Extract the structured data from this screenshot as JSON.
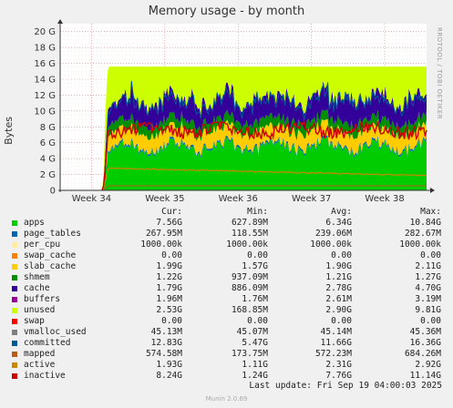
{
  "chart_data": {
    "type": "area",
    "title": "Memory usage - by month",
    "ylabel": "Bytes",
    "side_label": "RRDTOOL / TOBI OETIKER",
    "ylim": [
      0,
      21
    ],
    "yticks": [
      "0",
      "2 G",
      "4 G",
      "6 G",
      "8 G",
      "10 G",
      "12 G",
      "14 G",
      "16 G",
      "18 G",
      "20 G"
    ],
    "x_range": [
      0,
      35
    ],
    "x_ticks": [
      {
        "label": "Week 34",
        "x": 3
      },
      {
        "label": "Week 35",
        "x": 10
      },
      {
        "label": "Week 36",
        "x": 17
      },
      {
        "label": "Week 37",
        "x": 24
      },
      {
        "label": "Week 38",
        "x": 31
      }
    ],
    "column_headers": [
      "Cur:",
      "Min:",
      "Avg:",
      "Max:"
    ],
    "series": [
      {
        "name": "apps",
        "color": "#00cc00",
        "cur": "7.56G",
        "min": "627.89M",
        "avg": "6.34G",
        "max": "10.84G"
      },
      {
        "name": "page_tables",
        "color": "#0066b3",
        "cur": "267.95M",
        "min": "118.55M",
        "avg": "239.06M",
        "max": "282.67M"
      },
      {
        "name": "per_cpu",
        "color": "#ffeda0",
        "cur": "1000.00k",
        "min": "1000.00k",
        "avg": "1000.00k",
        "max": "1000.00k"
      },
      {
        "name": "swap_cache",
        "color": "#ff8000",
        "cur": "0.00",
        "min": "0.00",
        "avg": "0.00",
        "max": "0.00"
      },
      {
        "name": "slab_cache",
        "color": "#ffcc00",
        "cur": "1.99G",
        "min": "1.57G",
        "avg": "1.90G",
        "max": "2.11G"
      },
      {
        "name": "shmem",
        "color": "#008f00",
        "cur": "1.22G",
        "min": "937.09M",
        "avg": "1.21G",
        "max": "1.27G"
      },
      {
        "name": "cache",
        "color": "#330099",
        "cur": "1.79G",
        "min": "886.09M",
        "avg": "2.78G",
        "max": "4.70G"
      },
      {
        "name": "buffers",
        "color": "#990099",
        "cur": "1.96M",
        "min": "1.76M",
        "avg": "2.61M",
        "max": "3.19M"
      },
      {
        "name": "unused",
        "color": "#ccff00",
        "cur": "2.53G",
        "min": "168.85M",
        "avg": "2.90G",
        "max": "9.81G"
      },
      {
        "name": "swap",
        "color": "#ff0000",
        "cur": "0.00",
        "min": "0.00",
        "avg": "0.00",
        "max": "0.00"
      },
      {
        "name": "vmalloc_used",
        "color": "#808080",
        "cur": "45.13M",
        "min": "45.07M",
        "avg": "45.14M",
        "max": "45.36M"
      },
      {
        "name": "committed",
        "color": "#005a96",
        "cur": "12.83G",
        "min": "5.47G",
        "avg": "11.66G",
        "max": "16.36G"
      },
      {
        "name": "mapped",
        "color": "#b85c1a",
        "cur": "574.58M",
        "min": "173.75M",
        "avg": "572.23M",
        "max": "684.26M"
      },
      {
        "name": "active",
        "color": "#cc8800",
        "cur": "1.93G",
        "min": "1.11G",
        "avg": "2.31G",
        "max": "2.92G"
      },
      {
        "name": "inactive",
        "color": "#cc0000",
        "cur": "8.24G",
        "min": "1.24G",
        "avg": "7.76G",
        "max": "11.14G"
      }
    ]
  },
  "last_update": "Last update: Fri Sep 19 04:00:03 2025",
  "footer": "Munin 2.0.69"
}
